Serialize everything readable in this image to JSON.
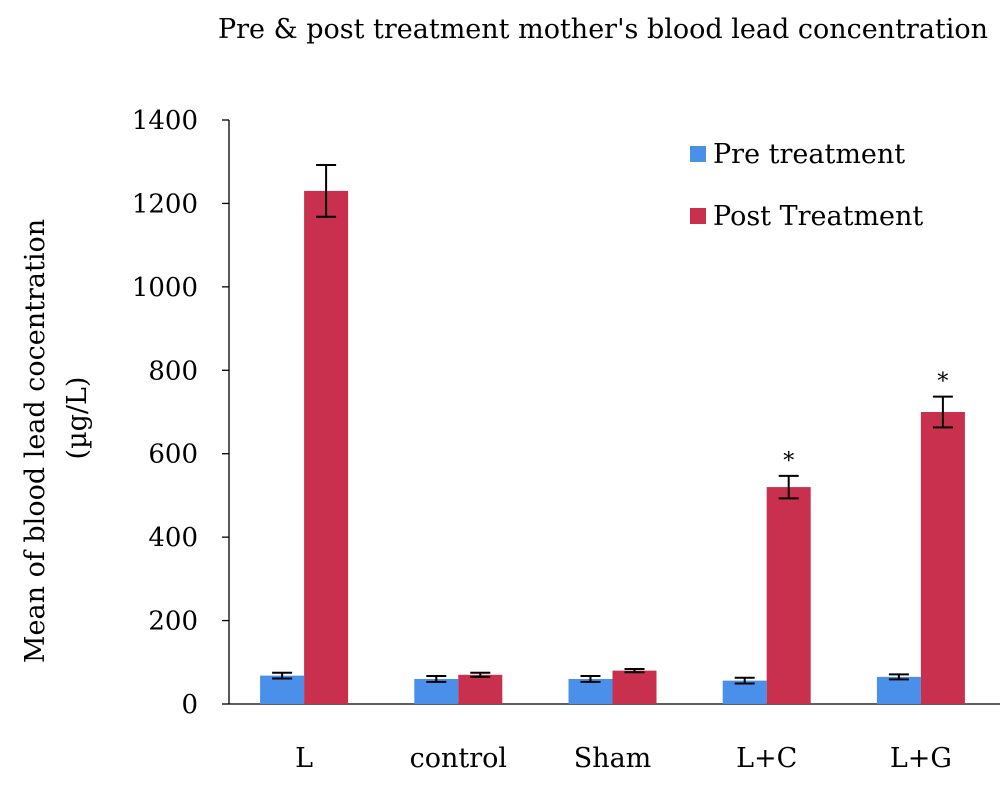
{
  "chart_data": {
    "type": "bar",
    "title": "Pre & post treatment mother's blood lead concentration",
    "ylabel": "Mean of  blood lead cocentration",
    "ylabel_unit": "(µg/L)",
    "xlabel": "",
    "ylim": [
      0,
      1400
    ],
    "yticks": [
      "0",
      "200",
      "400",
      "600",
      "800",
      "1000",
      "1200",
      "1400"
    ],
    "categories": [
      "L",
      "control",
      "Sham",
      "L+C",
      "L+G"
    ],
    "series": [
      {
        "name": "Pre treatment",
        "color": "#4a8fea",
        "values": [
          68,
          60,
          60,
          56,
          65
        ],
        "errors": [
          7,
          7,
          7,
          7,
          6
        ]
      },
      {
        "name": "Post Treatment",
        "color": "#c8304e",
        "values": [
          1230,
          70,
          80,
          520,
          700
        ],
        "errors": [
          62,
          5,
          4,
          27,
          37
        ]
      }
    ],
    "annotations": [
      "",
      "",
      "",
      "*",
      "*"
    ],
    "legend_position": "top-right",
    "grid": false
  }
}
